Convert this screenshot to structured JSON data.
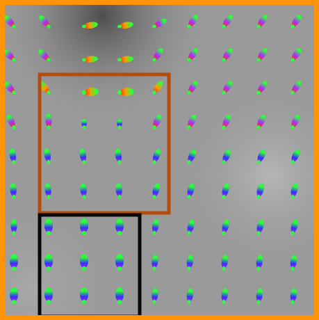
{
  "figure": {
    "description_free": true,
    "background_colors": {
      "base": "#9a9a9a",
      "light": "#b4b4b4",
      "dark": "#5c5c5c"
    },
    "frame_color": "#ff9408",
    "highlight_boxes": [
      {
        "name": "brown-box",
        "color": "#b34d0f"
      },
      {
        "name": "black-box",
        "color": "#080808"
      }
    ],
    "glyph_colors": {
      "tip_a": "#ff2a1a",
      "tip_b": "#b02cff",
      "mid_a": "#3a2cff",
      "core": "#2cff3a",
      "edge": "#ff9a00"
    },
    "grid": {
      "columns": 9,
      "rows": 9
    }
  }
}
